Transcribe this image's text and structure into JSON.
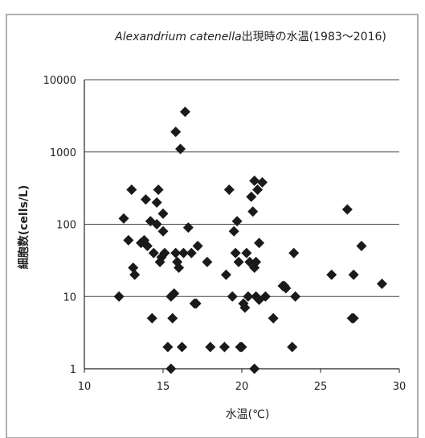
{
  "chart_data": {
    "type": "scatter",
    "title_species": "Alexandrium catenella",
    "title_suffix": "出現時の水温(1983〜2016)",
    "xlabel": "水温(℃)",
    "ylabel": "細胞数(cells/L)",
    "xlim": [
      10,
      30
    ],
    "ylim": [
      1,
      10000
    ],
    "yscale": "log",
    "grid": "horizontal",
    "marker": "diamond",
    "marker_color": "#1a1a1a",
    "x_ticks": [
      "10",
      "15",
      "20",
      "25",
      "30"
    ],
    "y_ticks": [
      "1",
      "10",
      "100",
      "1000",
      "10000"
    ],
    "points": [
      {
        "x": 12.2,
        "y": 10
      },
      {
        "x": 12.5,
        "y": 120
      },
      {
        "x": 12.8,
        "y": 60
      },
      {
        "x": 13.0,
        "y": 300
      },
      {
        "x": 13.1,
        "y": 25
      },
      {
        "x": 13.2,
        "y": 20
      },
      {
        "x": 13.6,
        "y": 55
      },
      {
        "x": 13.8,
        "y": 60
      },
      {
        "x": 13.9,
        "y": 220
      },
      {
        "x": 14.0,
        "y": 50
      },
      {
        "x": 14.2,
        "y": 110
      },
      {
        "x": 14.3,
        "y": 5
      },
      {
        "x": 14.4,
        "y": 40
      },
      {
        "x": 14.6,
        "y": 100
      },
      {
        "x": 14.7,
        "y": 300
      },
      {
        "x": 14.6,
        "y": 200
      },
      {
        "x": 14.8,
        "y": 30
      },
      {
        "x": 14.9,
        "y": 35
      },
      {
        "x": 15.0,
        "y": 140
      },
      {
        "x": 15.0,
        "y": 80
      },
      {
        "x": 15.1,
        "y": 40
      },
      {
        "x": 15.3,
        "y": 2
      },
      {
        "x": 15.5,
        "y": 1
      },
      {
        "x": 15.5,
        "y": 10
      },
      {
        "x": 15.6,
        "y": 5
      },
      {
        "x": 15.7,
        "y": 11
      },
      {
        "x": 15.8,
        "y": 40
      },
      {
        "x": 15.8,
        "y": 1900
      },
      {
        "x": 15.9,
        "y": 30
      },
      {
        "x": 16.0,
        "y": 25
      },
      {
        "x": 16.1,
        "y": 1100
      },
      {
        "x": 16.2,
        "y": 2
      },
      {
        "x": 16.3,
        "y": 40
      },
      {
        "x": 16.4,
        "y": 3600
      },
      {
        "x": 16.6,
        "y": 90
      },
      {
        "x": 16.8,
        "y": 40
      },
      {
        "x": 17.0,
        "y": 8
      },
      {
        "x": 17.1,
        "y": 8
      },
      {
        "x": 17.2,
        "y": 50
      },
      {
        "x": 17.8,
        "y": 30
      },
      {
        "x": 18.0,
        "y": 2
      },
      {
        "x": 18.9,
        "y": 2
      },
      {
        "x": 19.0,
        "y": 20
      },
      {
        "x": 19.2,
        "y": 300
      },
      {
        "x": 19.4,
        "y": 10
      },
      {
        "x": 19.5,
        "y": 80
      },
      {
        "x": 19.6,
        "y": 40
      },
      {
        "x": 19.7,
        "y": 110
      },
      {
        "x": 19.8,
        "y": 30
      },
      {
        "x": 19.9,
        "y": 2
      },
      {
        "x": 20.0,
        "y": 2
      },
      {
        "x": 20.1,
        "y": 8
      },
      {
        "x": 20.2,
        "y": 7
      },
      {
        "x": 20.3,
        "y": 40
      },
      {
        "x": 20.4,
        "y": 10
      },
      {
        "x": 20.5,
        "y": 30
      },
      {
        "x": 20.6,
        "y": 240
      },
      {
        "x": 20.7,
        "y": 150
      },
      {
        "x": 20.8,
        "y": 400
      },
      {
        "x": 20.8,
        "y": 25
      },
      {
        "x": 20.9,
        "y": 30
      },
      {
        "x": 20.9,
        "y": 10
      },
      {
        "x": 20.8,
        "y": 1
      },
      {
        "x": 21.0,
        "y": 300
      },
      {
        "x": 21.1,
        "y": 55
      },
      {
        "x": 21.1,
        "y": 9
      },
      {
        "x": 21.3,
        "y": 380
      },
      {
        "x": 21.5,
        "y": 10
      },
      {
        "x": 22.0,
        "y": 5
      },
      {
        "x": 22.6,
        "y": 14
      },
      {
        "x": 22.7,
        "y": 14
      },
      {
        "x": 22.8,
        "y": 13
      },
      {
        "x": 23.2,
        "y": 2
      },
      {
        "x": 23.3,
        "y": 40
      },
      {
        "x": 23.4,
        "y": 10
      },
      {
        "x": 25.7,
        "y": 20
      },
      {
        "x": 26.7,
        "y": 160
      },
      {
        "x": 27.0,
        "y": 5
      },
      {
        "x": 27.1,
        "y": 5
      },
      {
        "x": 27.1,
        "y": 20
      },
      {
        "x": 27.6,
        "y": 50
      },
      {
        "x": 28.9,
        "y": 15
      }
    ]
  }
}
